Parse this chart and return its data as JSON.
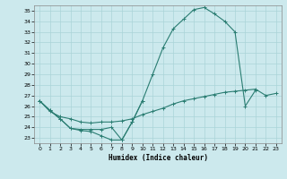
{
  "xlabel": "Humidex (Indice chaleur)",
  "bg_color": "#cce9ed",
  "line_color": "#2a7d72",
  "grid_color": "#aad4d8",
  "ylim": [
    22.5,
    35.5
  ],
  "xlim": [
    -0.5,
    23.5
  ],
  "yticks": [
    23,
    24,
    25,
    26,
    27,
    28,
    29,
    30,
    31,
    32,
    33,
    34,
    35
  ],
  "xticks": [
    0,
    1,
    2,
    3,
    4,
    5,
    6,
    7,
    8,
    9,
    10,
    11,
    12,
    13,
    14,
    15,
    16,
    17,
    18,
    19,
    20,
    21,
    22,
    23
  ],
  "line1_x": [
    0,
    1,
    2,
    3,
    4,
    5,
    6,
    7,
    8,
    9,
    10,
    11,
    12,
    13,
    14,
    15,
    16,
    17,
    18,
    19,
    20,
    21
  ],
  "line1_y": [
    26.5,
    25.6,
    24.8,
    23.9,
    23.7,
    23.6,
    23.2,
    22.8,
    22.8,
    24.5,
    26.5,
    29.0,
    31.5,
    33.3,
    34.2,
    35.1,
    35.3,
    34.7,
    34.0,
    33.0,
    26.0,
    27.5
  ],
  "line2_x": [
    0,
    1,
    2,
    3,
    4,
    5,
    6,
    7,
    8,
    9,
    10
  ],
  "line2_y": [
    26.5,
    25.6,
    24.8,
    23.9,
    23.8,
    23.8,
    23.8,
    24.0,
    22.8,
    24.5,
    26.5
  ],
  "line3_x": [
    0,
    1,
    2,
    3,
    4,
    5,
    6,
    7,
    8,
    9,
    10,
    11,
    12,
    13,
    14,
    15,
    16,
    17,
    18,
    19,
    20,
    21,
    22,
    23
  ],
  "line3_y": [
    26.5,
    25.5,
    25.0,
    24.8,
    24.5,
    24.4,
    24.5,
    24.5,
    24.6,
    24.8,
    25.2,
    25.5,
    25.8,
    26.2,
    26.5,
    26.7,
    26.9,
    27.1,
    27.3,
    27.4,
    27.5,
    27.6,
    27.0,
    27.2
  ]
}
